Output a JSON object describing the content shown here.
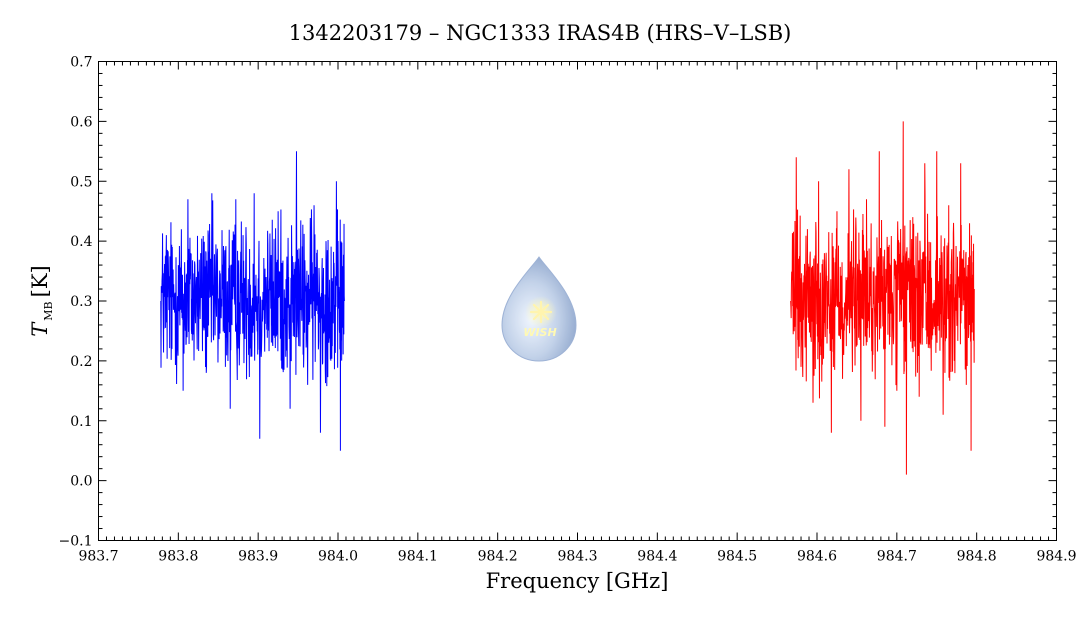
{
  "chart_data": {
    "type": "line",
    "title": "1342203179 – NGC1333 IRAS4B (HRS–V–LSB)",
    "xlabel": "Frequency [GHz]",
    "ylabel_main": "T",
    "ylabel_sub": "MB",
    "ylabel_unit": "[K]",
    "xlim": [
      983.7,
      984.9
    ],
    "ylim": [
      -0.1,
      0.7
    ],
    "x_ticks": [
      "983.7",
      "983.8",
      "983.9",
      "984.0",
      "984.1",
      "984.2",
      "984.3",
      "984.4",
      "984.5",
      "984.6",
      "984.7",
      "984.8",
      "984.9"
    ],
    "y_ticks": [
      "−0.1",
      "0.0",
      "0.1",
      "0.2",
      "0.3",
      "0.4",
      "0.5",
      "0.6",
      "0.7"
    ],
    "grid": false,
    "series": [
      {
        "color": "#0000ff",
        "x_range": [
          983.778,
          984.008
        ],
        "points": [
          [
            983.778,
            0.3
          ],
          [
            983.785,
            0.41
          ],
          [
            983.792,
            0.22
          ],
          [
            983.8,
            0.36
          ],
          [
            983.806,
            0.15
          ],
          [
            983.812,
            0.47
          ],
          [
            983.82,
            0.29
          ],
          [
            983.828,
            0.38
          ],
          [
            983.835,
            0.18
          ],
          [
            983.842,
            0.48
          ],
          [
            983.85,
            0.26
          ],
          [
            983.858,
            0.33
          ],
          [
            983.865,
            0.12
          ],
          [
            983.872,
            0.47
          ],
          [
            983.88,
            0.3
          ],
          [
            983.888,
            0.21
          ],
          [
            983.895,
            0.48
          ],
          [
            983.902,
            0.07
          ],
          [
            983.91,
            0.34
          ],
          [
            983.918,
            0.23
          ],
          [
            983.925,
            0.45
          ],
          [
            983.932,
            0.27
          ],
          [
            983.94,
            0.12
          ],
          [
            983.948,
            0.55
          ],
          [
            983.955,
            0.3
          ],
          [
            983.962,
            0.16
          ],
          [
            983.97,
            0.46
          ],
          [
            983.978,
            0.08
          ],
          [
            983.985,
            0.4
          ],
          [
            983.992,
            0.29
          ],
          [
            983.998,
            0.5
          ],
          [
            984.003,
            0.05
          ],
          [
            984.008,
            0.3
          ]
        ]
      },
      {
        "color": "#ff0000",
        "x_range": [
          984.567,
          984.797
        ],
        "points": [
          [
            984.567,
            0.3
          ],
          [
            984.574,
            0.54
          ],
          [
            984.58,
            0.19
          ],
          [
            984.588,
            0.42
          ],
          [
            984.595,
            0.13
          ],
          [
            984.602,
            0.5
          ],
          [
            984.61,
            0.27
          ],
          [
            984.618,
            0.08
          ],
          [
            984.625,
            0.45
          ],
          [
            984.632,
            0.17
          ],
          [
            984.64,
            0.52
          ],
          [
            984.648,
            0.31
          ],
          [
            984.655,
            0.1
          ],
          [
            984.662,
            0.47
          ],
          [
            984.67,
            0.21
          ],
          [
            984.678,
            0.55
          ],
          [
            984.685,
            0.09
          ],
          [
            984.692,
            0.36
          ],
          [
            984.7,
            0.15
          ],
          [
            984.708,
            0.6
          ],
          [
            984.712,
            0.01
          ],
          [
            984.72,
            0.44
          ],
          [
            984.728,
            0.14
          ],
          [
            984.735,
            0.53
          ],
          [
            984.742,
            0.25
          ],
          [
            984.75,
            0.55
          ],
          [
            984.758,
            0.11
          ],
          [
            984.765,
            0.46
          ],
          [
            984.772,
            0.2
          ],
          [
            984.78,
            0.53
          ],
          [
            984.787,
            0.16
          ],
          [
            984.793,
            0.05
          ],
          [
            984.797,
            0.32
          ]
        ]
      }
    ]
  },
  "watermark": {
    "text": "WISH",
    "icon": "water-drop-star-logo"
  }
}
